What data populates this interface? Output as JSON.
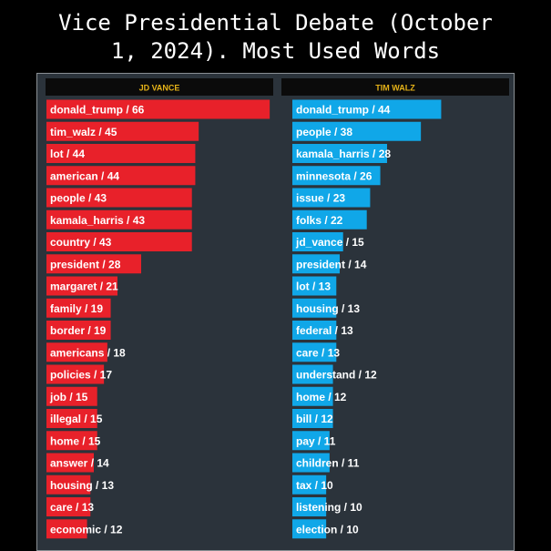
{
  "title": "Vice Presidential Debate (October\n1, 2024). Most Used Words",
  "colors": {
    "background": "#000000",
    "panel": "#2b333b",
    "header": "#0b0b0b",
    "header_text": "#e6b318",
    "vance": "#e8212a",
    "walz": "#10a7e8",
    "label_text": "#ffffff"
  },
  "chart_data": [
    {
      "type": "bar",
      "orientation": "horizontal",
      "title": "JD VANCE",
      "xlim": [
        0,
        70
      ],
      "categories": [
        "donald_trump",
        "tim_walz",
        "lot",
        "american",
        "people",
        "kamala_harris",
        "country",
        "president",
        "margaret",
        "family",
        "border",
        "americans",
        "policies",
        "job",
        "illegal",
        "home",
        "answer",
        "housing",
        "care",
        "economic"
      ],
      "values": [
        66,
        45,
        44,
        44,
        43,
        43,
        43,
        28,
        21,
        19,
        19,
        18,
        17,
        15,
        15,
        15,
        14,
        13,
        13,
        12
      ],
      "labels": [
        "donald_trump / 66",
        "tim_walz / 45",
        "lot / 44",
        "american / 44",
        "people / 43",
        "kamala_harris / 43",
        "country / 43",
        "president / 28",
        "margaret / 21",
        "family / 19",
        "border / 19",
        "americans / 18",
        "policies / 17",
        "job / 15",
        "illegal / 15",
        "home / 15",
        "answer / 14",
        "housing / 13",
        "care / 13",
        "economic / 12"
      ]
    },
    {
      "type": "bar",
      "orientation": "horizontal",
      "title": "TIM WALZ",
      "xlim": [
        0,
        70
      ],
      "categories": [
        "donald_trump",
        "people",
        "kamala_harris",
        "minnesota",
        "issue",
        "folks",
        "jd_vance",
        "president",
        "lot",
        "housing",
        "federal",
        "care",
        "understand",
        "home",
        "bill",
        "pay",
        "children",
        "tax",
        "listening",
        "election"
      ],
      "values": [
        44,
        38,
        28,
        26,
        23,
        22,
        15,
        14,
        13,
        13,
        13,
        13,
        12,
        12,
        12,
        11,
        11,
        10,
        10,
        10
      ],
      "labels": [
        "donald_trump / 44",
        "people / 38",
        "kamala_harris / 28",
        "minnesota / 26",
        "issue / 23",
        "folks / 22",
        "jd_vance / 15",
        "president / 14",
        "lot / 13",
        "housing / 13",
        "federal / 13",
        "care / 13",
        "understand / 12",
        "home / 12",
        "bill / 12",
        "pay / 11",
        "children / 11",
        "tax / 10",
        "listening / 10",
        "election / 10"
      ]
    }
  ]
}
